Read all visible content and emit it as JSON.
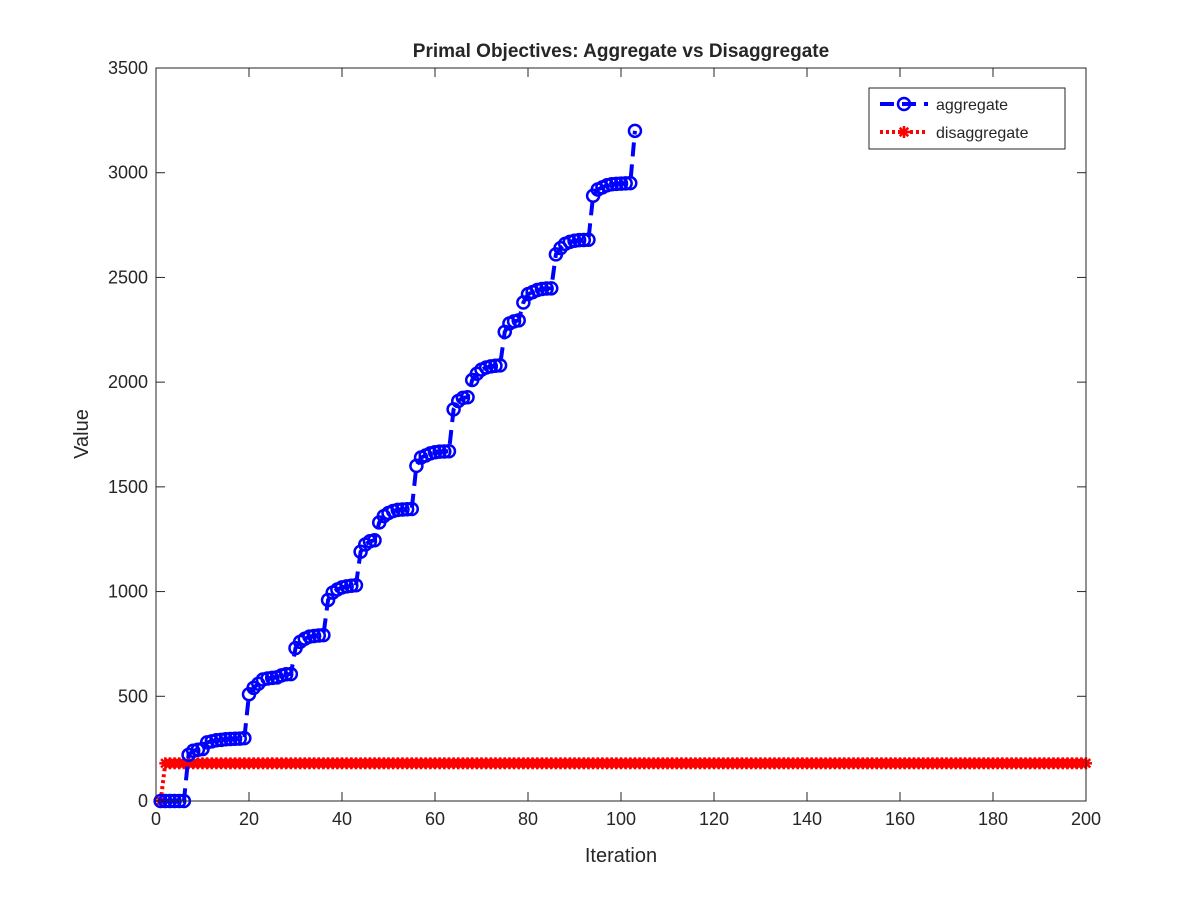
{
  "chart_data": {
    "type": "line",
    "title": "Primal Objectives: Aggregate vs Disaggregate",
    "xlabel": "Iteration",
    "ylabel": "Value",
    "xlim": [
      0,
      200
    ],
    "ylim": [
      0,
      3500
    ],
    "xticks": [
      0,
      20,
      40,
      60,
      80,
      100,
      120,
      140,
      160,
      180,
      200
    ],
    "yticks": [
      0,
      500,
      1000,
      1500,
      2000,
      2500,
      3000,
      3500
    ],
    "grid": false,
    "legend_position": "top-right",
    "series": [
      {
        "name": "aggregate",
        "color": "#0000ff",
        "line_style": "dashed",
        "marker": "circle",
        "x": [
          1,
          2,
          3,
          4,
          5,
          6,
          7,
          8,
          9,
          10,
          11,
          12,
          13,
          14,
          15,
          16,
          17,
          18,
          19,
          20,
          21,
          22,
          23,
          24,
          25,
          26,
          27,
          28,
          29,
          30,
          31,
          32,
          33,
          34,
          35,
          36,
          37,
          38,
          39,
          40,
          41,
          42,
          43,
          44,
          45,
          46,
          47,
          48,
          49,
          50,
          51,
          52,
          53,
          54,
          55,
          56,
          57,
          58,
          59,
          60,
          61,
          62,
          63,
          64,
          65,
          66,
          67,
          68,
          69,
          70,
          71,
          72,
          73,
          74,
          75,
          76,
          77,
          78,
          79,
          80,
          81,
          82,
          83,
          84,
          85,
          86,
          87,
          88,
          89,
          90,
          91,
          92,
          93,
          94,
          95,
          96,
          97,
          98,
          99,
          100,
          101,
          102,
          103
        ],
        "y": [
          0,
          0,
          0,
          0,
          0,
          0,
          220,
          240,
          245,
          248,
          280,
          285,
          290,
          292,
          295,
          296,
          297,
          298,
          300,
          510,
          540,
          560,
          580,
          585,
          588,
          590,
          600,
          605,
          606,
          730,
          760,
          775,
          785,
          788,
          790,
          792,
          960,
          995,
          1010,
          1020,
          1025,
          1028,
          1030,
          1190,
          1225,
          1240,
          1245,
          1330,
          1360,
          1375,
          1385,
          1390,
          1392,
          1393,
          1394,
          1600,
          1640,
          1650,
          1660,
          1665,
          1668,
          1669,
          1670,
          1870,
          1910,
          1925,
          1928,
          2010,
          2040,
          2060,
          2070,
          2075,
          2078,
          2080,
          2240,
          2280,
          2290,
          2295,
          2380,
          2420,
          2430,
          2440,
          2445,
          2447,
          2448,
          2610,
          2640,
          2660,
          2670,
          2675,
          2678,
          2679,
          2680,
          2890,
          2920,
          2930,
          2940,
          2945,
          2947,
          2948,
          2949,
          2950,
          3200
        ]
      },
      {
        "name": "disaggregate",
        "color": "#ff0000",
        "line_style": "dotted",
        "marker": "asterisk",
        "x_start": 1,
        "x_end": 200,
        "y_first": 0,
        "y_rest": 180
      }
    ]
  }
}
